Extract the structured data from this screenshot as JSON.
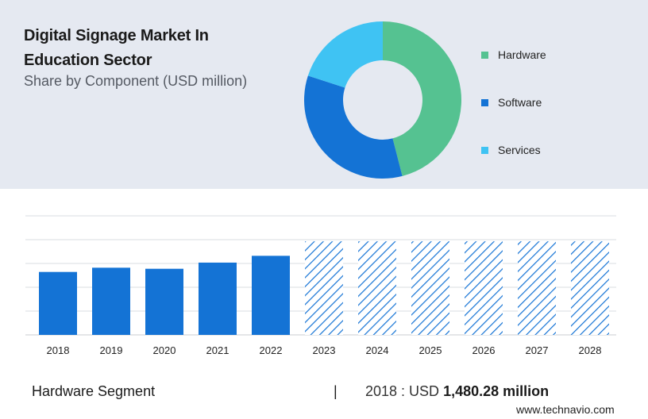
{
  "header": {
    "title": "Digital Signage Market In Education Sector",
    "subtitle": "Share by Component (USD million)"
  },
  "legend": [
    {
      "label": "Hardware",
      "color": "#55c291"
    },
    {
      "label": "Software",
      "color": "#1473d5"
    },
    {
      "label": "Services",
      "color": "#3fc3f3"
    }
  ],
  "footer": {
    "segment": "Hardware Segment",
    "divider": "|",
    "year_prefix": "2018 : USD",
    "value": "1,480.28 million",
    "brand": "www.technavio.com"
  },
  "chart_data": [
    {
      "type": "pie",
      "donut": true,
      "categories": [
        "Hardware",
        "Software",
        "Services"
      ],
      "values": [
        46,
        34,
        20
      ],
      "colors": [
        "#55c291",
        "#1473d5",
        "#3fc3f3"
      ]
    },
    {
      "type": "bar",
      "categories": [
        "2018",
        "2019",
        "2020",
        "2021",
        "2022",
        "2023",
        "2024",
        "2025",
        "2026",
        "2027",
        "2028"
      ],
      "values": [
        1480.28,
        1580,
        1555,
        1700,
        1860,
        2200,
        2200,
        2200,
        2200,
        2200,
        2200
      ],
      "forecast_from": "2023",
      "ylim": [
        0,
        2800
      ],
      "grid": true,
      "color": "#1473d5"
    }
  ]
}
